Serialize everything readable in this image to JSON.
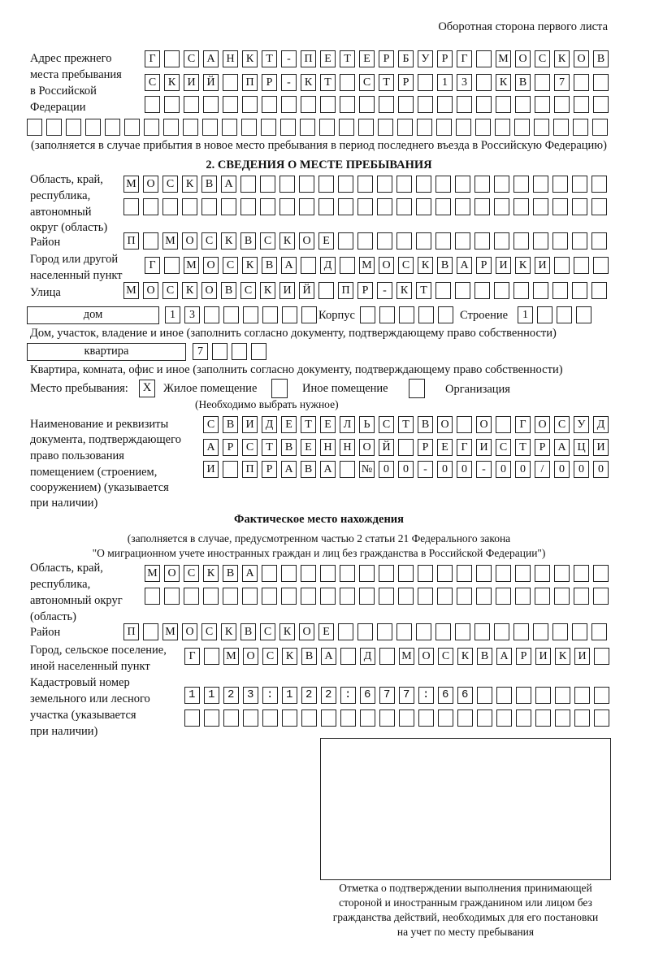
{
  "header": {
    "sheet_side": "Оборотная сторона первого листа"
  },
  "previous_address": {
    "label_lines": [
      "Адрес прежнего",
      "места пребывания",
      "в Российской",
      "Федерации"
    ],
    "rows": [
      "Г САНКТ-ПЕТЕРБУРГ МОСКОВ",
      "СКИЙ ПР-КТ СТР 13 КВ 7  ",
      "                        ",
      "                              "
    ],
    "note": "(заполняется в случае прибытия в новое место пребывания в период последнего въезда в Российскую Федерацию)"
  },
  "section2": {
    "title": "2. СВЕДЕНИЯ О МЕСТЕ ПРЕБЫВАНИЯ",
    "region_label": [
      "Область, край,",
      "республика,",
      "автономный",
      "округ (область)"
    ],
    "region_rows": [
      "МОСКВА                   ",
      "                         "
    ],
    "district_label": "Район",
    "district_row": "П МОСКВСКОЕ              ",
    "city_label": [
      "Город или другой",
      "населенный пункт"
    ],
    "city_row": "Г МОСКВА Д МОСКВАРИКИ   ",
    "street_label": "Улица",
    "street_row": "МОСКОВСКИЙ ПР-КТ         ",
    "house_type": "дом",
    "house_row": "13      ",
    "korpus_label": "Корпус",
    "korpus_row": "     ",
    "building_label": "Строение",
    "building_row": "1   ",
    "house_caption": "Дом, участок, владение и иное (заполнить согласно документу, подтверждающему право собственности)",
    "apt_type": "квартира",
    "apt_row": "7   ",
    "apt_caption": "Квартира, комната, офис и иное (заполнить согласно документу, подтверждающему право собственности)",
    "stay_label": "Место пребывания:",
    "stay_options": [
      {
        "label": "Жилое помещение",
        "mark": "X"
      },
      {
        "label": "Иное помещение",
        "mark": ""
      },
      {
        "label": "Организация",
        "mark": ""
      }
    ],
    "stay_hint": "(Необходимо выбрать нужное)",
    "doc_label": [
      "Наименование и реквизиты",
      "документа, подтверждающего",
      "право пользования",
      "помещением (строением,",
      "сооружением) (указывается",
      "при наличии)"
    ],
    "doc_rows": [
      "СВИДЕТЕЛЬСТВО О ГОСУД",
      "АРСТВЕННОЙ РЕГИСТРАЦИ",
      "И ПРАВА №00-00-00/000"
    ]
  },
  "actual": {
    "title": "Фактическое место нахождения",
    "note_lines": [
      "(заполняется в случае, предусмотренном частью 2 статьи 21 Федерального закона",
      "\"О миграционном учете иностранных граждан и лиц без гражданства в Российской Федерации\")"
    ],
    "region_label": [
      "Область, край,",
      "республика,",
      "автономный округ",
      "(область)"
    ],
    "region_rows": [
      "МОСКВА                  ",
      "                        "
    ],
    "district_label": "Район",
    "district_row": "П МОСКВСКОЕ              ",
    "city_label": [
      "Город, сельское поселение,",
      "иной населенный пункт"
    ],
    "city_row": "Г МОСКВА Д МОСКВАРИКИ ",
    "cadastral_label": [
      "Кадастровый номер",
      "земельного или лесного",
      "участка (указывается",
      "при наличии)"
    ],
    "cadastral_rows": [
      "1123:122:677:66       ",
      "                      "
    ]
  },
  "confirmation": {
    "caption_lines": [
      "Отметка о подтверждении выполнения принимающей",
      "стороной и иностранным гражданином или лицом без",
      "гражданства действий, необходимых для его постановки",
      "на учет по месту пребывания"
    ]
  }
}
